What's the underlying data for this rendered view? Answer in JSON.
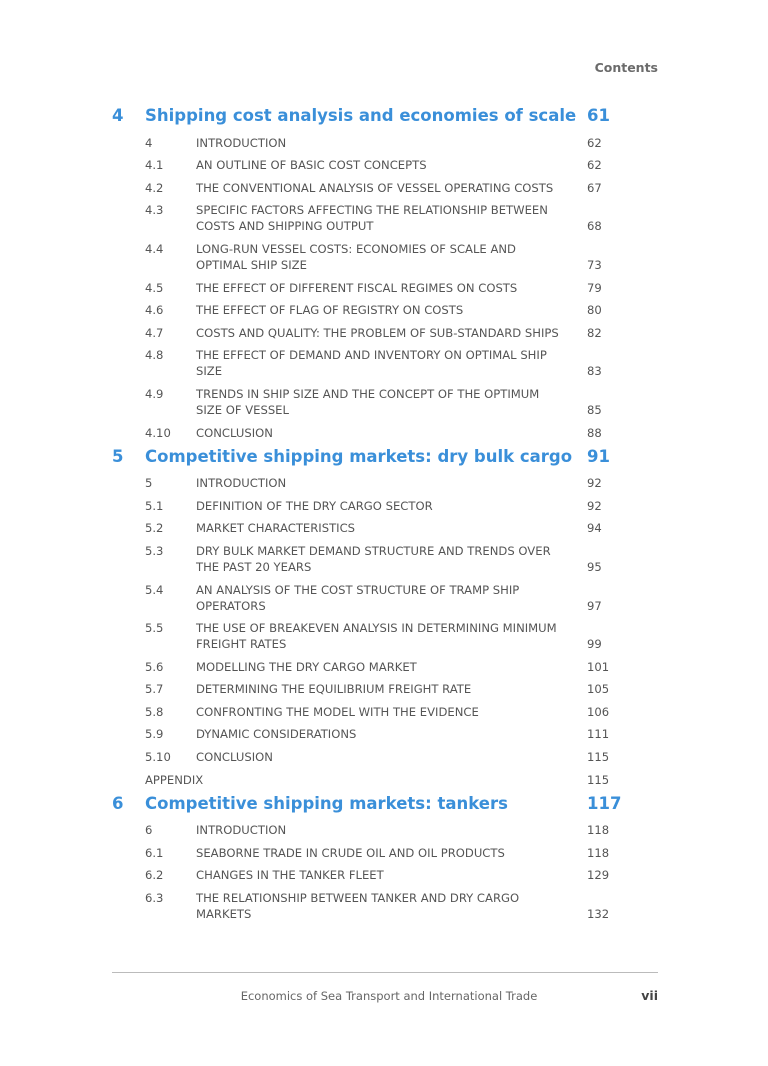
{
  "running_head": "Contents",
  "chapters": [
    {
      "num": "4",
      "title": "Shipping cost analysis and economies of scale",
      "page": "61",
      "entries": [
        {
          "num": "4",
          "title": "INTRODUCTION",
          "page": "62"
        },
        {
          "num": "4.1",
          "title": "AN OUTLINE OF BASIC COST CONCEPTS",
          "page": "62"
        },
        {
          "num": "4.2",
          "title": "THE CONVENTIONAL ANALYSIS OF VESSEL OPERATING COSTS",
          "page": "67"
        },
        {
          "num": "4.3",
          "title": "SPECIFIC FACTORS AFFECTING THE RELATIONSHIP BETWEEN COSTS AND SHIPPING OUTPUT",
          "page": "68"
        },
        {
          "num": "4.4",
          "title": "LONG-RUN VESSEL COSTS: ECONOMIES OF SCALE AND OPTIMAL SHIP SIZE",
          "page": "73"
        },
        {
          "num": "4.5",
          "title": "THE EFFECT OF DIFFERENT FISCAL REGIMES ON COSTS",
          "page": "79"
        },
        {
          "num": "4.6",
          "title": "THE EFFECT OF FLAG OF REGISTRY ON COSTS",
          "page": "80"
        },
        {
          "num": "4.7",
          "title": "COSTS AND QUALITY: THE PROBLEM OF SUB-STANDARD SHIPS",
          "page": "82"
        },
        {
          "num": "4.8",
          "title": "THE EFFECT OF DEMAND AND INVENTORY ON OPTIMAL SHIP SIZE",
          "page": "83"
        },
        {
          "num": "4.9",
          "title": "TRENDS IN SHIP SIZE AND THE CONCEPT OF THE OPTIMUM SIZE OF VESSEL",
          "page": "85"
        },
        {
          "num": "4.10",
          "title": "CONCLUSION",
          "page": "88"
        }
      ]
    },
    {
      "num": "5",
      "title": "Competitive shipping markets: dry bulk cargo",
      "page": "91",
      "entries": [
        {
          "num": "5",
          "title": "INTRODUCTION",
          "page": "92"
        },
        {
          "num": "5.1",
          "title": "DEFINITION OF THE DRY CARGO SECTOR",
          "page": "92"
        },
        {
          "num": "5.2",
          "title": "MARKET CHARACTERISTICS",
          "page": "94"
        },
        {
          "num": "5.3",
          "title": "DRY BULK MARKET DEMAND STRUCTURE AND TRENDS OVER THE PAST 20 YEARS",
          "page": "95"
        },
        {
          "num": "5.4",
          "title": "AN ANALYSIS OF THE COST STRUCTURE OF TRAMP SHIP OPERATORS",
          "page": "97"
        },
        {
          "num": "5.5",
          "title": "THE USE OF BREAKEVEN ANALYSIS IN DETERMINING MINIMUM FREIGHT RATES",
          "page": "99"
        },
        {
          "num": "5.6",
          "title": "MODELLING THE DRY CARGO MARKET",
          "page": "101"
        },
        {
          "num": "5.7",
          "title": "DETERMINING THE EQUILIBRIUM FREIGHT RATE",
          "page": "105"
        },
        {
          "num": "5.8",
          "title": "CONFRONTING THE MODEL WITH THE EVIDENCE",
          "page": "106"
        },
        {
          "num": "5.9",
          "title": "DYNAMIC CONSIDERATIONS",
          "page": "111"
        },
        {
          "num": "5.10",
          "title": "CONCLUSION",
          "page": "115"
        },
        {
          "num": "",
          "title": "APPENDIX",
          "page": "115",
          "appendix": true
        }
      ]
    },
    {
      "num": "6",
      "title": "Competitive shipping markets: tankers",
      "page": "117",
      "entries": [
        {
          "num": "6",
          "title": "INTRODUCTION",
          "page": "118"
        },
        {
          "num": "6.1",
          "title": "SEABORNE TRADE IN CRUDE OIL AND OIL PRODUCTS",
          "page": "118"
        },
        {
          "num": "6.2",
          "title": "CHANGES IN THE TANKER FLEET",
          "page": "129"
        },
        {
          "num": "6.3",
          "title": "THE RELATIONSHIP BETWEEN TANKER AND DRY CARGO MARKETS",
          "page": "132"
        }
      ]
    }
  ],
  "footer": {
    "title": "Economics of Sea Transport and International Trade",
    "page": "vii"
  }
}
